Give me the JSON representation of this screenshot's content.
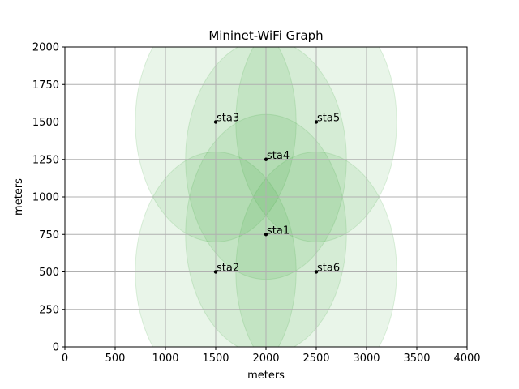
{
  "chart_data": {
    "type": "scatter",
    "title": "Mininet-WiFi Graph",
    "xlabel": "meters",
    "ylabel": "meters",
    "xlim": [
      0,
      4000
    ],
    "ylim": [
      0,
      2000
    ],
    "xticks": [
      0,
      500,
      1000,
      1500,
      2000,
      2500,
      3000,
      3500,
      4000
    ],
    "yticks": [
      0,
      250,
      500,
      750,
      1000,
      1250,
      1500,
      1750,
      2000
    ],
    "grid": true,
    "range_radius": 800,
    "range_color": "#2ca02c",
    "point_color": "#000000",
    "stations": [
      {
        "name": "sta1",
        "x": 2000,
        "y": 750
      },
      {
        "name": "sta2",
        "x": 1500,
        "y": 500
      },
      {
        "name": "sta3",
        "x": 1500,
        "y": 1500
      },
      {
        "name": "sta4",
        "x": 2000,
        "y": 1250
      },
      {
        "name": "sta5",
        "x": 2500,
        "y": 1500
      },
      {
        "name": "sta6",
        "x": 2500,
        "y": 500
      }
    ]
  }
}
